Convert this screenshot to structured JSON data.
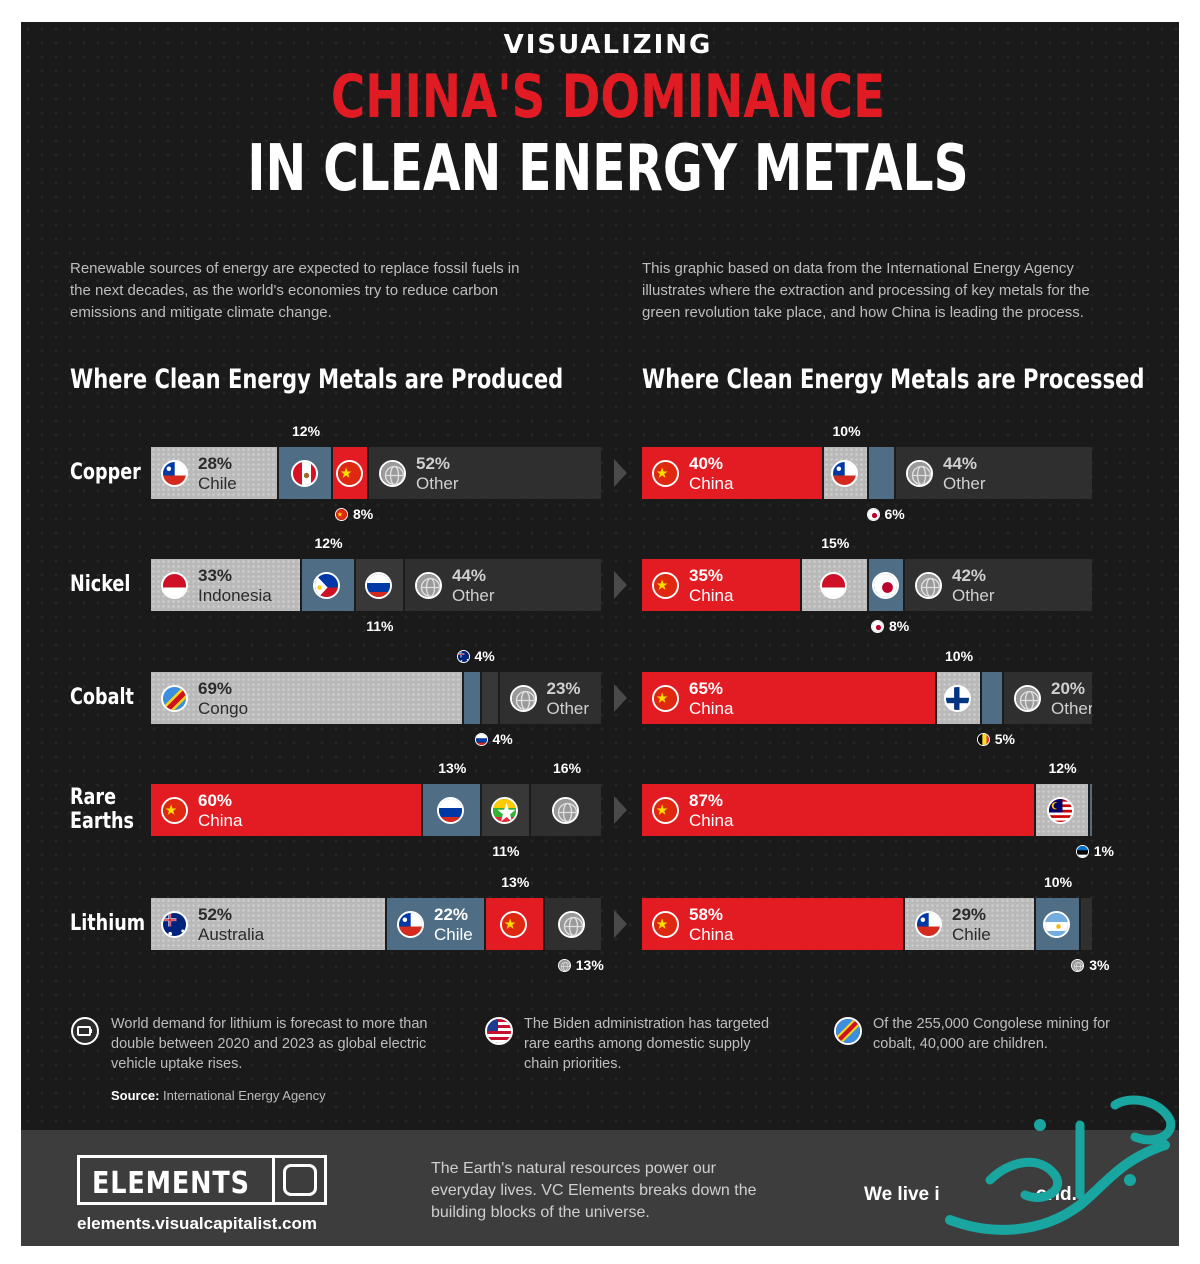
{
  "title": {
    "line1": "VISUALIZING",
    "line2": "CHINA'S DOMINANCE",
    "line3": "IN CLEAN ENERGY METALS"
  },
  "intro_left": "Renewable sources of energy are expected to replace fossil fuels in the next decades, as the world's economies try to reduce carbon emissions and mitigate climate change.",
  "intro_right": "This graphic based on data from the International Energy Agency illustrates where the extraction and processing of key metals for the green revolution take place, and how China is leading the process.",
  "section_left": "Where Clean Energy Metals are Produced",
  "section_right": "Where Clean Energy Metals are Processed",
  "colors": {
    "china": "#e31b23",
    "major_country": "#b9b9b9",
    "secondary_country": "#4f6e86",
    "other": "#2f2f2f",
    "background": "#1a1a1a"
  },
  "chart_data": [
    {
      "type": "bar",
      "stacked": true,
      "orientation": "horizontal",
      "title": "Where Clean Energy Metals are Produced",
      "categories": [
        "Copper",
        "Nickel",
        "Cobalt",
        "Rare Earths",
        "Lithium"
      ],
      "rows": [
        {
          "metal": "Copper",
          "label": "Copper",
          "segments": [
            {
              "country": "Chile",
              "value": 28,
              "color": "major",
              "flag": "chile-flag-icon",
              "pct_label": "28%",
              "name_label": "Chile"
            },
            {
              "country": "Peru",
              "value": 12,
              "color": "blue",
              "flag": "peru-flag-icon",
              "pct_label": "12%",
              "label_position": "above"
            },
            {
              "country": "China",
              "value": 8,
              "color": "china",
              "flag": "china-flag-icon",
              "pct_label": "8%",
              "label_position": "below"
            },
            {
              "country": "Other",
              "value": 52,
              "color": "other",
              "flag": "globe-icon",
              "pct_label": "52%",
              "name_label": "Other"
            }
          ]
        },
        {
          "metal": "Nickel",
          "label": "Nickel",
          "segments": [
            {
              "country": "Indonesia",
              "value": 33,
              "color": "major",
              "flag": "indonesia-flag-icon",
              "pct_label": "33%",
              "name_label": "Indonesia"
            },
            {
              "country": "Philippines",
              "value": 12,
              "color": "blue",
              "flag": "philippines-flag-icon",
              "pct_label": "12%",
              "label_position": "above"
            },
            {
              "country": "Russia",
              "value": 11,
              "color": "dark",
              "flag": "russia-flag-icon",
              "pct_label": "11%",
              "label_position": "below"
            },
            {
              "country": "Other",
              "value": 44,
              "color": "other",
              "flag": "globe-icon",
              "pct_label": "44%",
              "name_label": "Other"
            }
          ]
        },
        {
          "metal": "Cobalt",
          "label": "Cobalt",
          "segments": [
            {
              "country": "Congo",
              "value": 69,
              "color": "major",
              "flag": "congo-flag-icon",
              "pct_label": "69%",
              "name_label": "Congo"
            },
            {
              "country": "Australia",
              "value": 4,
              "color": "blue",
              "flag": "australia-flag-icon",
              "pct_label": "4%",
              "label_position": "above"
            },
            {
              "country": "Russia",
              "value": 4,
              "color": "dark",
              "flag": "russia-flag-icon",
              "pct_label": "4%",
              "label_position": "below"
            },
            {
              "country": "Other",
              "value": 23,
              "color": "other",
              "flag": "globe-icon",
              "pct_label": "23%",
              "name_label": "Other"
            }
          ]
        },
        {
          "metal": "Rare Earths",
          "label": "Rare\nEarths",
          "segments": [
            {
              "country": "China",
              "value": 60,
              "color": "china",
              "flag": "china-flag-icon",
              "pct_label": "60%",
              "name_label": "China"
            },
            {
              "country": "Russia",
              "value": 13,
              "color": "blue",
              "flag": "russia-flag-icon",
              "pct_label": "13%",
              "label_position": "above"
            },
            {
              "country": "Myanmar",
              "value": 11,
              "color": "dark",
              "flag": "myanmar-flag-icon",
              "pct_label": "11%",
              "label_position": "below"
            },
            {
              "country": "Other",
              "value": 16,
              "color": "other",
              "flag": "globe-icon",
              "pct_label": "16%",
              "label_position": "above"
            }
          ]
        },
        {
          "metal": "Lithium",
          "label": "Lithium",
          "segments": [
            {
              "country": "Australia",
              "value": 52,
              "color": "major",
              "flag": "australia-flag-icon",
              "pct_label": "52%",
              "name_label": "Australia"
            },
            {
              "country": "Chile",
              "value": 22,
              "color": "blue",
              "flag": "chile-flag-icon",
              "pct_label": "22%",
              "name_label": "Chile"
            },
            {
              "country": "China",
              "value": 13,
              "color": "china",
              "flag": "china-flag-icon",
              "pct_label": "13%",
              "label_position": "above"
            },
            {
              "country": "Other",
              "value": 13,
              "color": "other",
              "flag": "globe-icon",
              "pct_label": "13%",
              "label_position": "below"
            }
          ]
        }
      ]
    },
    {
      "type": "bar",
      "stacked": true,
      "orientation": "horizontal",
      "title": "Where Clean Energy Metals are Processed",
      "categories": [
        "Copper",
        "Nickel",
        "Cobalt",
        "Rare Earths",
        "Lithium"
      ],
      "rows": [
        {
          "metal": "Copper",
          "segments": [
            {
              "country": "China",
              "value": 40,
              "color": "china",
              "flag": "china-flag-icon",
              "pct_label": "40%",
              "name_label": "China"
            },
            {
              "country": "Chile",
              "value": 10,
              "color": "major",
              "flag": "chile-flag-icon",
              "pct_label": "10%",
              "label_position": "above"
            },
            {
              "country": "Japan",
              "value": 6,
              "color": "blue",
              "flag": "japan-flag-icon",
              "pct_label": "6%",
              "label_position": "below"
            },
            {
              "country": "Other",
              "value": 44,
              "color": "other",
              "flag": "globe-icon",
              "pct_label": "44%",
              "name_label": "Other"
            }
          ]
        },
        {
          "metal": "Nickel",
          "segments": [
            {
              "country": "China",
              "value": 35,
              "color": "china",
              "flag": "china-flag-icon",
              "pct_label": "35%",
              "name_label": "China"
            },
            {
              "country": "Indonesia",
              "value": 15,
              "color": "major",
              "flag": "indonesia-flag-icon",
              "pct_label": "15%",
              "label_position": "above"
            },
            {
              "country": "Japan",
              "value": 8,
              "color": "blue",
              "flag": "japan-flag-icon",
              "pct_label": "8%",
              "label_position": "below"
            },
            {
              "country": "Other",
              "value": 42,
              "color": "other",
              "flag": "globe-icon",
              "pct_label": "42%",
              "name_label": "Other"
            }
          ]
        },
        {
          "metal": "Cobalt",
          "segments": [
            {
              "country": "China",
              "value": 65,
              "color": "china",
              "flag": "china-flag-icon",
              "pct_label": "65%",
              "name_label": "China"
            },
            {
              "country": "Finland",
              "value": 10,
              "color": "major",
              "flag": "finland-flag-icon",
              "pct_label": "10%",
              "label_position": "above"
            },
            {
              "country": "Belgium",
              "value": 5,
              "color": "blue",
              "flag": "belgium-flag-icon",
              "pct_label": "5%",
              "label_position": "below"
            },
            {
              "country": "Other",
              "value": 20,
              "color": "other",
              "flag": "globe-icon",
              "pct_label": "20%",
              "name_label": "Other"
            }
          ]
        },
        {
          "metal": "Rare Earths",
          "segments": [
            {
              "country": "China",
              "value": 87,
              "color": "china",
              "flag": "china-flag-icon",
              "pct_label": "87%",
              "name_label": "China"
            },
            {
              "country": "Malaysia",
              "value": 12,
              "color": "major",
              "flag": "malaysia-flag-icon",
              "pct_label": "12%",
              "label_position": "above"
            },
            {
              "country": "Estonia",
              "value": 1,
              "color": "blue",
              "flag": "estonia-flag-icon",
              "pct_label": "1%",
              "label_position": "below"
            }
          ]
        },
        {
          "metal": "Lithium",
          "segments": [
            {
              "country": "China",
              "value": 58,
              "color": "china",
              "flag": "china-flag-icon",
              "pct_label": "58%",
              "name_label": "China"
            },
            {
              "country": "Chile",
              "value": 29,
              "color": "major",
              "flag": "chile-flag-icon",
              "pct_label": "29%",
              "name_label": "Chile"
            },
            {
              "country": "Argentina",
              "value": 10,
              "color": "blue",
              "flag": "argentina-flag-icon",
              "pct_label": "10%",
              "label_position": "above"
            },
            {
              "country": "Other",
              "value": 3,
              "color": "other",
              "flag": "globe-icon",
              "pct_label": "3%",
              "label_position": "below"
            }
          ]
        }
      ]
    }
  ],
  "notes": [
    {
      "icon": "battery-icon",
      "text": "World demand for lithium is forecast to more than double between 2020 and 2023 as global electric vehicle uptake rises."
    },
    {
      "icon": "usa-flag-icon",
      "text": "The Biden administration has targeted rare earths among domestic supply chain priorities."
    },
    {
      "icon": "congo-flag-icon",
      "text": "Of the 255,000 Congolese mining for cobalt, 40,000 are children."
    }
  ],
  "source": {
    "label": "Source:",
    "value": "International Energy Agency"
  },
  "footer": {
    "logo": "ELEMENTS",
    "url": "elements.visualcapitalist.com",
    "blurb": "The Earth's natural resources power our everyday lives. VC Elements breaks down the building blocks of the universe.",
    "slogan_start": "We live i",
    "slogan_end": "orld."
  }
}
